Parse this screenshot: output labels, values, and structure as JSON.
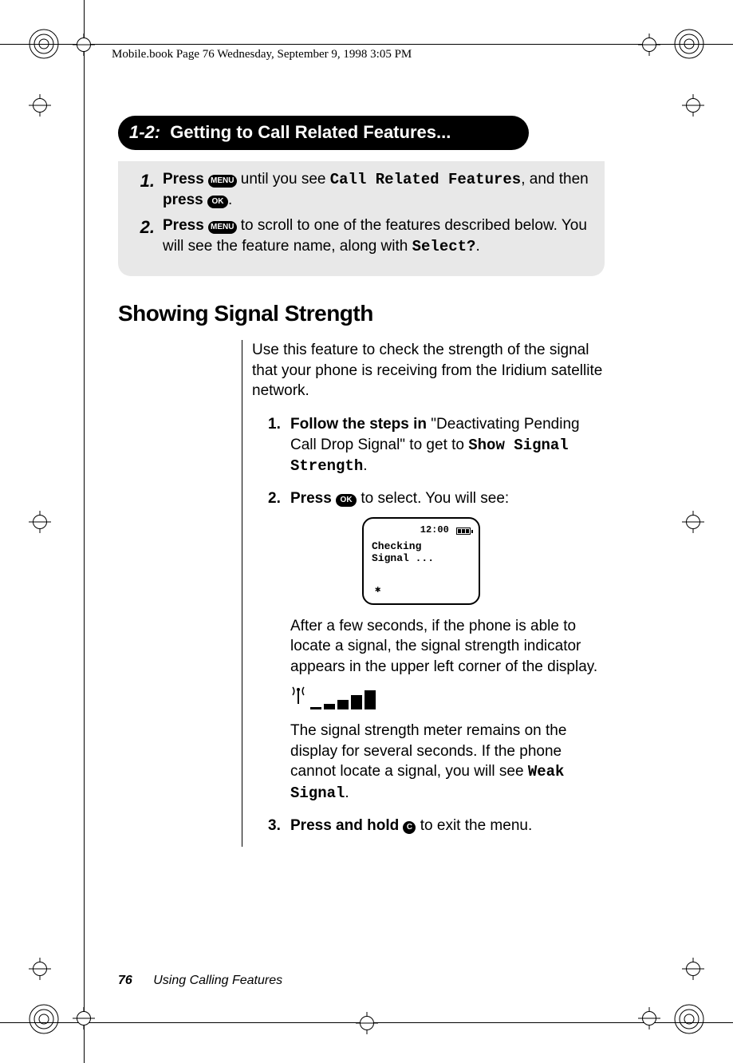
{
  "page": {
    "header_line": "Mobile.book  Page 76  Wednesday, September 9, 1998  3:05 PM",
    "page_number": "76",
    "footer_title": "Using Calling Features"
  },
  "section_pill": {
    "number": "1-2:",
    "title": "Getting to Call Related Features..."
  },
  "pill_steps": [
    {
      "n": "1.",
      "pre": "Press ",
      "btn1": "MENU",
      "mid1": " until you see ",
      "lcd1": "Call Related Features",
      "mid2": ", and then ",
      "bold2": "press ",
      "btn2": "OK",
      "tail": "."
    },
    {
      "n": "2.",
      "pre": "Press ",
      "btn1": "MENU",
      "mid1": " to scroll to one of the features described below. You will see the feature name, along with ",
      "lcd1": "Select?",
      "tail": "."
    }
  ],
  "heading": "Showing Signal Strength",
  "intro": "Use this feature to check the strength of the signal that your phone is receiving from the Iridium satellite network.",
  "steps": [
    {
      "n": "1.",
      "bold": "Follow the steps in ",
      "mid1": "\"Deactivating Pending Call Drop Signal\" to get to ",
      "lcd": "Show Signal Strength",
      "tail": "."
    },
    {
      "n": "2.",
      "bold": "Press ",
      "btn": "OK",
      "mid1": " to select. You will see:"
    },
    {
      "n": "3.",
      "bold": "Press and hold ",
      "btn": "C",
      "mid1": " to exit the menu."
    }
  ],
  "screen": {
    "time": "12:00",
    "line1": "Checking",
    "line2": "Signal ..."
  },
  "after_screen_para": "After a few seconds, if the phone is able to locate a signal, the signal strength indicator appears in the upper left corner of the display.",
  "after_meter_para_pre": "The signal strength meter remains on the display for several seconds. If the phone cannot locate a signal, you will see ",
  "after_meter_lcd": "Weak Signal",
  "after_meter_tail": ".",
  "signal_bars": [
    {
      "w": 14,
      "h": 3
    },
    {
      "w": 14,
      "h": 7
    },
    {
      "w": 14,
      "h": 12
    },
    {
      "w": 14,
      "h": 18
    },
    {
      "w": 14,
      "h": 24
    }
  ],
  "colors": {
    "black": "#000000",
    "grey_box": "#e8e8e8",
    "white": "#ffffff"
  }
}
